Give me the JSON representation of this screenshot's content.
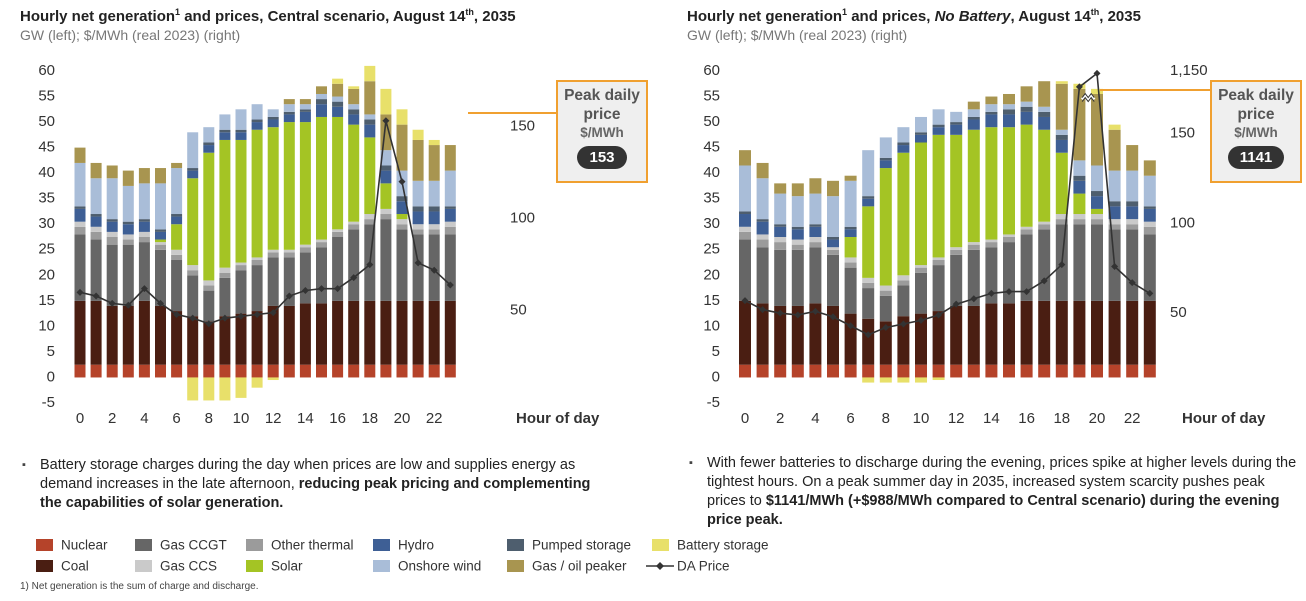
{
  "chart_data": [
    {
      "type": "bar",
      "title": [
        "Hourly net generation",
        "1",
        " and prices, Central scenario, August 14",
        "th",
        ", 2035"
      ],
      "subtitle": "GW (left); $/MWh (real 2023) (right)",
      "xlabel": "Hour of day",
      "x": [
        0,
        1,
        2,
        3,
        4,
        5,
        6,
        7,
        8,
        9,
        10,
        11,
        12,
        13,
        14,
        15,
        16,
        17,
        18,
        19,
        20,
        21,
        22,
        23
      ],
      "xticks": [
        0,
        2,
        4,
        6,
        8,
        10,
        12,
        14,
        16,
        18,
        20,
        22
      ],
      "ylim": [
        -5,
        60
      ],
      "yticks": [
        -5,
        0,
        5,
        10,
        15,
        20,
        25,
        30,
        35,
        40,
        45,
        50,
        55,
        60
      ],
      "y2lim": [
        0,
        180
      ],
      "y2ticks": [
        50,
        100,
        150
      ],
      "series": [
        {
          "name": "Nuclear",
          "color": "#b5432a",
          "values": [
            2.5,
            2.5,
            2.5,
            2.5,
            2.5,
            2.5,
            2.5,
            2.5,
            2.5,
            2.5,
            2.5,
            2.5,
            2.5,
            2.5,
            2.5,
            2.5,
            2.5,
            2.5,
            2.5,
            2.5,
            2.5,
            2.5,
            2.5,
            2.5
          ]
        },
        {
          "name": "Coal",
          "color": "#4a1e12",
          "values": [
            12.5,
            12.5,
            11.5,
            11.5,
            12.5,
            11.5,
            10.5,
            9.5,
            8.5,
            9.5,
            10,
            10.5,
            11.5,
            11.5,
            12,
            12,
            12.5,
            12.5,
            12.5,
            12.5,
            12.5,
            12.5,
            12.5,
            12.5
          ]
        },
        {
          "name": "Gas CCGT",
          "color": "#666666",
          "values": [
            13,
            12,
            12,
            12,
            11.5,
            11,
            10,
            8,
            6,
            7.5,
            8.5,
            9,
            9.5,
            9.5,
            10,
            11,
            12.5,
            14,
            15,
            16,
            14,
            13,
            13,
            13
          ]
        },
        {
          "name": "Other thermal",
          "color": "#9b9b9b",
          "values": [
            1.5,
            1.5,
            1.5,
            1,
            1,
            1,
            1,
            1,
            1,
            1,
            1,
            1,
            1,
            1,
            1,
            1,
            1,
            1,
            1,
            1,
            1,
            1,
            1,
            1.5
          ]
        },
        {
          "name": "Gas CCS",
          "color": "#cacaca",
          "values": [
            1,
            1,
            1,
            1,
            1,
            0.5,
            1,
            1,
            1,
            1,
            0.5,
            0.5,
            0.5,
            0.5,
            0.5,
            0.5,
            0.5,
            0.5,
            1,
            1,
            1,
            1,
            1,
            1
          ]
        },
        {
          "name": "Solar",
          "color": "#a4c424",
          "values": [
            0,
            0,
            0,
            0,
            0,
            0.5,
            5,
            17,
            25,
            25,
            24,
            25,
            24,
            25,
            24,
            24,
            22,
            19,
            15,
            5,
            1,
            0,
            0,
            0
          ]
        },
        {
          "name": "Hydro",
          "color": "#3e5f95",
          "values": [
            2.5,
            2,
            2,
            2,
            2,
            1.5,
            1.5,
            1.5,
            1.5,
            1.5,
            1.5,
            1.5,
            1.5,
            1.5,
            2,
            2.5,
            2,
            2,
            2.5,
            2.5,
            2.5,
            2.5,
            2.5,
            2.5
          ]
        },
        {
          "name": "Pumped storage",
          "color": "#4e5e6e",
          "values": [
            0.5,
            0.5,
            0.5,
            0.5,
            0.5,
            0.5,
            0.5,
            0.5,
            0.5,
            0.5,
            0.5,
            0.5,
            0.5,
            0.5,
            0.5,
            1,
            1,
            1,
            1,
            1,
            1,
            1,
            1,
            0.5
          ]
        },
        {
          "name": "Onshore wind",
          "color": "#a9bdd8",
          "values": [
            8.5,
            7,
            8,
            7,
            7,
            9,
            9,
            7,
            3,
            3,
            4,
            3,
            1.5,
            1.5,
            1,
            1,
            1,
            1,
            1,
            3,
            5,
            5,
            5,
            7
          ]
        },
        {
          "name": "Gas / oil peaker",
          "color": "#a89550",
          "values": [
            3,
            3,
            2.5,
            3,
            3,
            3,
            1,
            0,
            0,
            0,
            0,
            0,
            0,
            1,
            1,
            1.5,
            2.5,
            3,
            6.5,
            7,
            9,
            8,
            7,
            5
          ]
        },
        {
          "name": "Battery storage",
          "color": "#e8e06a",
          "values": [
            0,
            0,
            0,
            0,
            0,
            0,
            0,
            -4.5,
            -4.5,
            -4.5,
            -4,
            -2,
            -0.5,
            0,
            0,
            0,
            1,
            0.5,
            3,
            5,
            3,
            2,
            1,
            0
          ]
        },
        {
          "name": "DA Price",
          "color": "#333333",
          "type": "line",
          "axis": "y2",
          "values": [
            60,
            58,
            54,
            53,
            62,
            54,
            48,
            46,
            43,
            46,
            47,
            48,
            49,
            58,
            61,
            62,
            62,
            68,
            75,
            153,
            120,
            76,
            72,
            64
          ]
        }
      ],
      "callout": {
        "title": "Peak daily price",
        "unit": "$/MWh",
        "value": 153
      },
      "note": [
        "Battery storage charges during the day when prices are low and supplies energy as demand increases in the late afternoon, ",
        "reducing peak pricing and complementing the capabilities of solar generation."
      ]
    },
    {
      "type": "bar",
      "title": [
        "Hourly net generation",
        "1",
        " and prices, ",
        "No Battery",
        ", August 14",
        "th",
        ", 2035"
      ],
      "subtitle": "GW (left); $/MWh (real 2023) (right)",
      "xlabel": "Hour of day",
      "x": [
        0,
        1,
        2,
        3,
        4,
        5,
        6,
        7,
        8,
        9,
        10,
        11,
        12,
        13,
        14,
        15,
        16,
        17,
        18,
        19,
        20,
        21,
        22,
        23
      ],
      "xticks": [
        0,
        2,
        4,
        6,
        8,
        10,
        12,
        14,
        16,
        18,
        20,
        22
      ],
      "ylim": [
        -5,
        60
      ],
      "yticks": [
        -5,
        0,
        5,
        10,
        15,
        20,
        25,
        30,
        35,
        40,
        45,
        50,
        55,
        60
      ],
      "y2lim": [
        0,
        1150
      ],
      "y2_break": [
        170,
        1050
      ],
      "y2ticks": [
        50,
        100,
        150,
        {
          "value": 1150,
          "label": "1,150"
        }
      ],
      "series": [
        {
          "name": "Nuclear",
          "color": "#b5432a",
          "values": [
            2.5,
            2.5,
            2.5,
            2.5,
            2.5,
            2.5,
            2.5,
            2.5,
            2.5,
            2.5,
            2.5,
            2.5,
            2.5,
            2.5,
            2.5,
            2.5,
            2.5,
            2.5,
            2.5,
            2.5,
            2.5,
            2.5,
            2.5,
            2.5
          ]
        },
        {
          "name": "Coal",
          "color": "#4a1e12",
          "values": [
            12.5,
            12,
            11.5,
            11.5,
            12,
            11.5,
            10,
            9,
            8.5,
            9.5,
            10,
            10.5,
            11.5,
            11.5,
            12,
            12,
            12.5,
            12.5,
            12.5,
            12.5,
            12.5,
            12.5,
            12.5,
            12.5
          ]
        },
        {
          "name": "Gas CCGT",
          "color": "#666666",
          "values": [
            12,
            11,
            11,
            11,
            11,
            10,
            9,
            6,
            5,
            6,
            8,
            9,
            10,
            11,
            11,
            12,
            13,
            14,
            15,
            15,
            15,
            14,
            14,
            13
          ]
        },
        {
          "name": "Other thermal",
          "color": "#9b9b9b",
          "values": [
            1.5,
            1.5,
            1.5,
            1,
            1,
            1,
            1,
            1,
            1,
            1,
            1,
            1,
            1,
            1,
            1,
            1,
            1,
            1,
            1,
            1,
            1,
            1,
            1,
            1.5
          ]
        },
        {
          "name": "Gas CCS",
          "color": "#cacaca",
          "values": [
            1,
            1,
            1,
            1,
            1,
            0.5,
            1,
            1,
            1,
            1,
            0.5,
            0.5,
            0.5,
            0.5,
            0.5,
            0.5,
            0.5,
            0.5,
            1,
            1,
            1,
            1,
            1,
            1
          ]
        },
        {
          "name": "Solar",
          "color": "#a4c424",
          "values": [
            0,
            0,
            0,
            0,
            0,
            0,
            4,
            14,
            23,
            24,
            24,
            24,
            22,
            22,
            22,
            21,
            20,
            18,
            12,
            4,
            1,
            0,
            0,
            0
          ]
        },
        {
          "name": "Hydro",
          "color": "#3e5f95",
          "values": [
            2.5,
            2.5,
            2,
            2,
            2,
            1.5,
            1.5,
            1.5,
            1.5,
            1.5,
            1.5,
            1.5,
            2,
            2,
            2.5,
            2.5,
            2.5,
            2.5,
            2.5,
            2.5,
            2.5,
            2.5,
            2.5,
            2.5
          ]
        },
        {
          "name": "Pumped storage",
          "color": "#4e5e6e",
          "values": [
            0.5,
            0.5,
            0.5,
            0.5,
            0.5,
            0.5,
            0.5,
            0.5,
            0.5,
            0.5,
            0.5,
            0.5,
            0.5,
            0.5,
            0.5,
            1,
            1,
            1,
            1,
            1,
            1,
            1,
            1,
            0.5
          ]
        },
        {
          "name": "Onshore wind",
          "color": "#a9bdd8",
          "values": [
            9,
            8,
            6,
            6,
            6,
            8,
            9,
            9,
            4,
            3,
            3,
            3,
            2,
            1.5,
            1.5,
            1,
            1,
            1,
            1,
            3,
            5,
            6,
            6,
            6
          ]
        },
        {
          "name": "Gas / oil peaker",
          "color": "#a89550",
          "values": [
            3,
            3,
            2,
            2.5,
            3,
            3,
            1,
            0,
            0,
            0,
            0,
            0,
            0,
            1.5,
            1.5,
            2,
            3,
            5,
            9,
            14,
            14,
            8,
            5,
            3
          ]
        },
        {
          "name": "Battery storage",
          "color": "#e8e06a",
          "values": [
            0,
            0,
            0,
            0,
            0,
            0,
            0,
            -1,
            -1,
            -1,
            -1,
            -0.5,
            0,
            0,
            0,
            0,
            0,
            0,
            0.5,
            1,
            1,
            1,
            0,
            0
          ]
        },
        {
          "name": "DA Price",
          "color": "#333333",
          "type": "line",
          "axis": "y2",
          "values": [
            57,
            52,
            50,
            49,
            51,
            48,
            43,
            38,
            42,
            44,
            46,
            49,
            55,
            58,
            61,
            62,
            62,
            68,
            77,
            1090,
            1141,
            76,
            67,
            61
          ]
        }
      ],
      "callout": {
        "title": "Peak daily price",
        "unit": "$/MWh",
        "value": 1141
      },
      "note": [
        "With fewer batteries to discharge during the evening, prices spike at higher levels during the tightest hours. On a peak summer day in 2035, increased system scarcity pushes peak prices to ",
        "$1141/MWh (+$988/MWh compared to Central scenario) during the evening price peak."
      ]
    }
  ],
  "footnote": "1) Net generation is the sum of charge and discharge."
}
